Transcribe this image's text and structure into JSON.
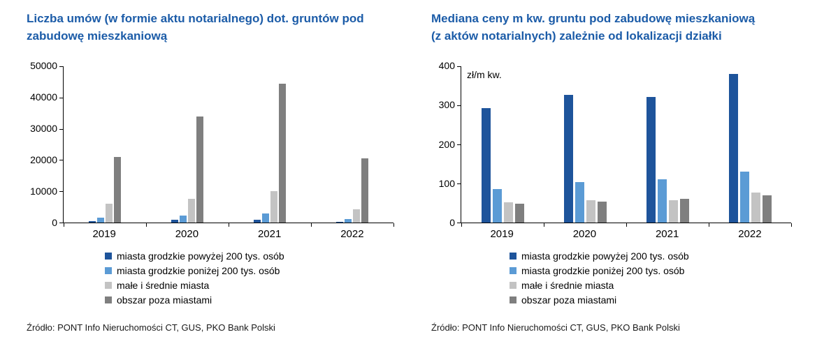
{
  "page": {
    "background": "#ffffff",
    "title_color": "#1c5ca8"
  },
  "chart_data": [
    {
      "type": "bar",
      "title": "Liczba umów (w formie aktu notarialnego) dot. gruntów pod zabudowę mieszkaniową",
      "title_lines": [
        "Liczba umów (w formie aktu notarialnego) dot. gruntów pod",
        "zabudowę mieszkaniową"
      ],
      "categories": [
        "2019",
        "2020",
        "2021",
        "2022"
      ],
      "series": [
        {
          "name": "miasta grodzkie powyżej 200 tys. osób",
          "color": "#1e549b",
          "values": [
            500,
            800,
            900,
            300
          ]
        },
        {
          "name": "miasta grodzkie poniżej 200 tys. osób",
          "color": "#5b9bd5",
          "values": [
            1500,
            2200,
            2800,
            1200
          ]
        },
        {
          "name": "małe i średnie miasta",
          "color": "#c3c3c3",
          "values": [
            6000,
            7500,
            10000,
            4200
          ]
        },
        {
          "name": "obszar poza miastami",
          "color": "#7f7f7f",
          "values": [
            21000,
            34000,
            44500,
            20500
          ]
        }
      ],
      "ylim": [
        0,
        50000
      ],
      "ytick_step": 10000,
      "unit": "",
      "xlabel": "",
      "ylabel": "",
      "grid": false,
      "legend_position": "bottom",
      "source": "Źródło: PONT Info Nieruchomości CT, GUS, PKO Bank Polski"
    },
    {
      "type": "bar",
      "title": "Mediana ceny m kw. gruntu pod zabudowę mieszkaniową (z aktów notarialnych) zależnie od lokalizacji działki",
      "title_lines": [
        "Mediana ceny m kw. gruntu pod zabudowę mieszkaniową",
        "(z aktów notarialnych) zależnie od lokalizacji działki"
      ],
      "categories": [
        "2019",
        "2020",
        "2021",
        "2022"
      ],
      "series": [
        {
          "name": "miasta grodzkie powyżej 200 tys. osób",
          "color": "#1e549b",
          "values": [
            293,
            327,
            322,
            381
          ]
        },
        {
          "name": "miasta grodzkie poniżej 200 tys. osób",
          "color": "#5b9bd5",
          "values": [
            86,
            104,
            111,
            130
          ]
        },
        {
          "name": "małe i średnie miasta",
          "color": "#c3c3c3",
          "values": [
            52,
            57,
            58,
            77
          ]
        },
        {
          "name": "obszar poza miastami",
          "color": "#7f7f7f",
          "values": [
            48,
            53,
            61,
            70
          ]
        }
      ],
      "ylim": [
        0,
        400
      ],
      "ytick_step": 100,
      "unit": "zł/m kw.",
      "xlabel": "",
      "ylabel": "",
      "grid": false,
      "legend_position": "bottom",
      "source": "Źródło: PONT Info Nieruchomości CT, GUS, PKO Bank Polski"
    }
  ]
}
